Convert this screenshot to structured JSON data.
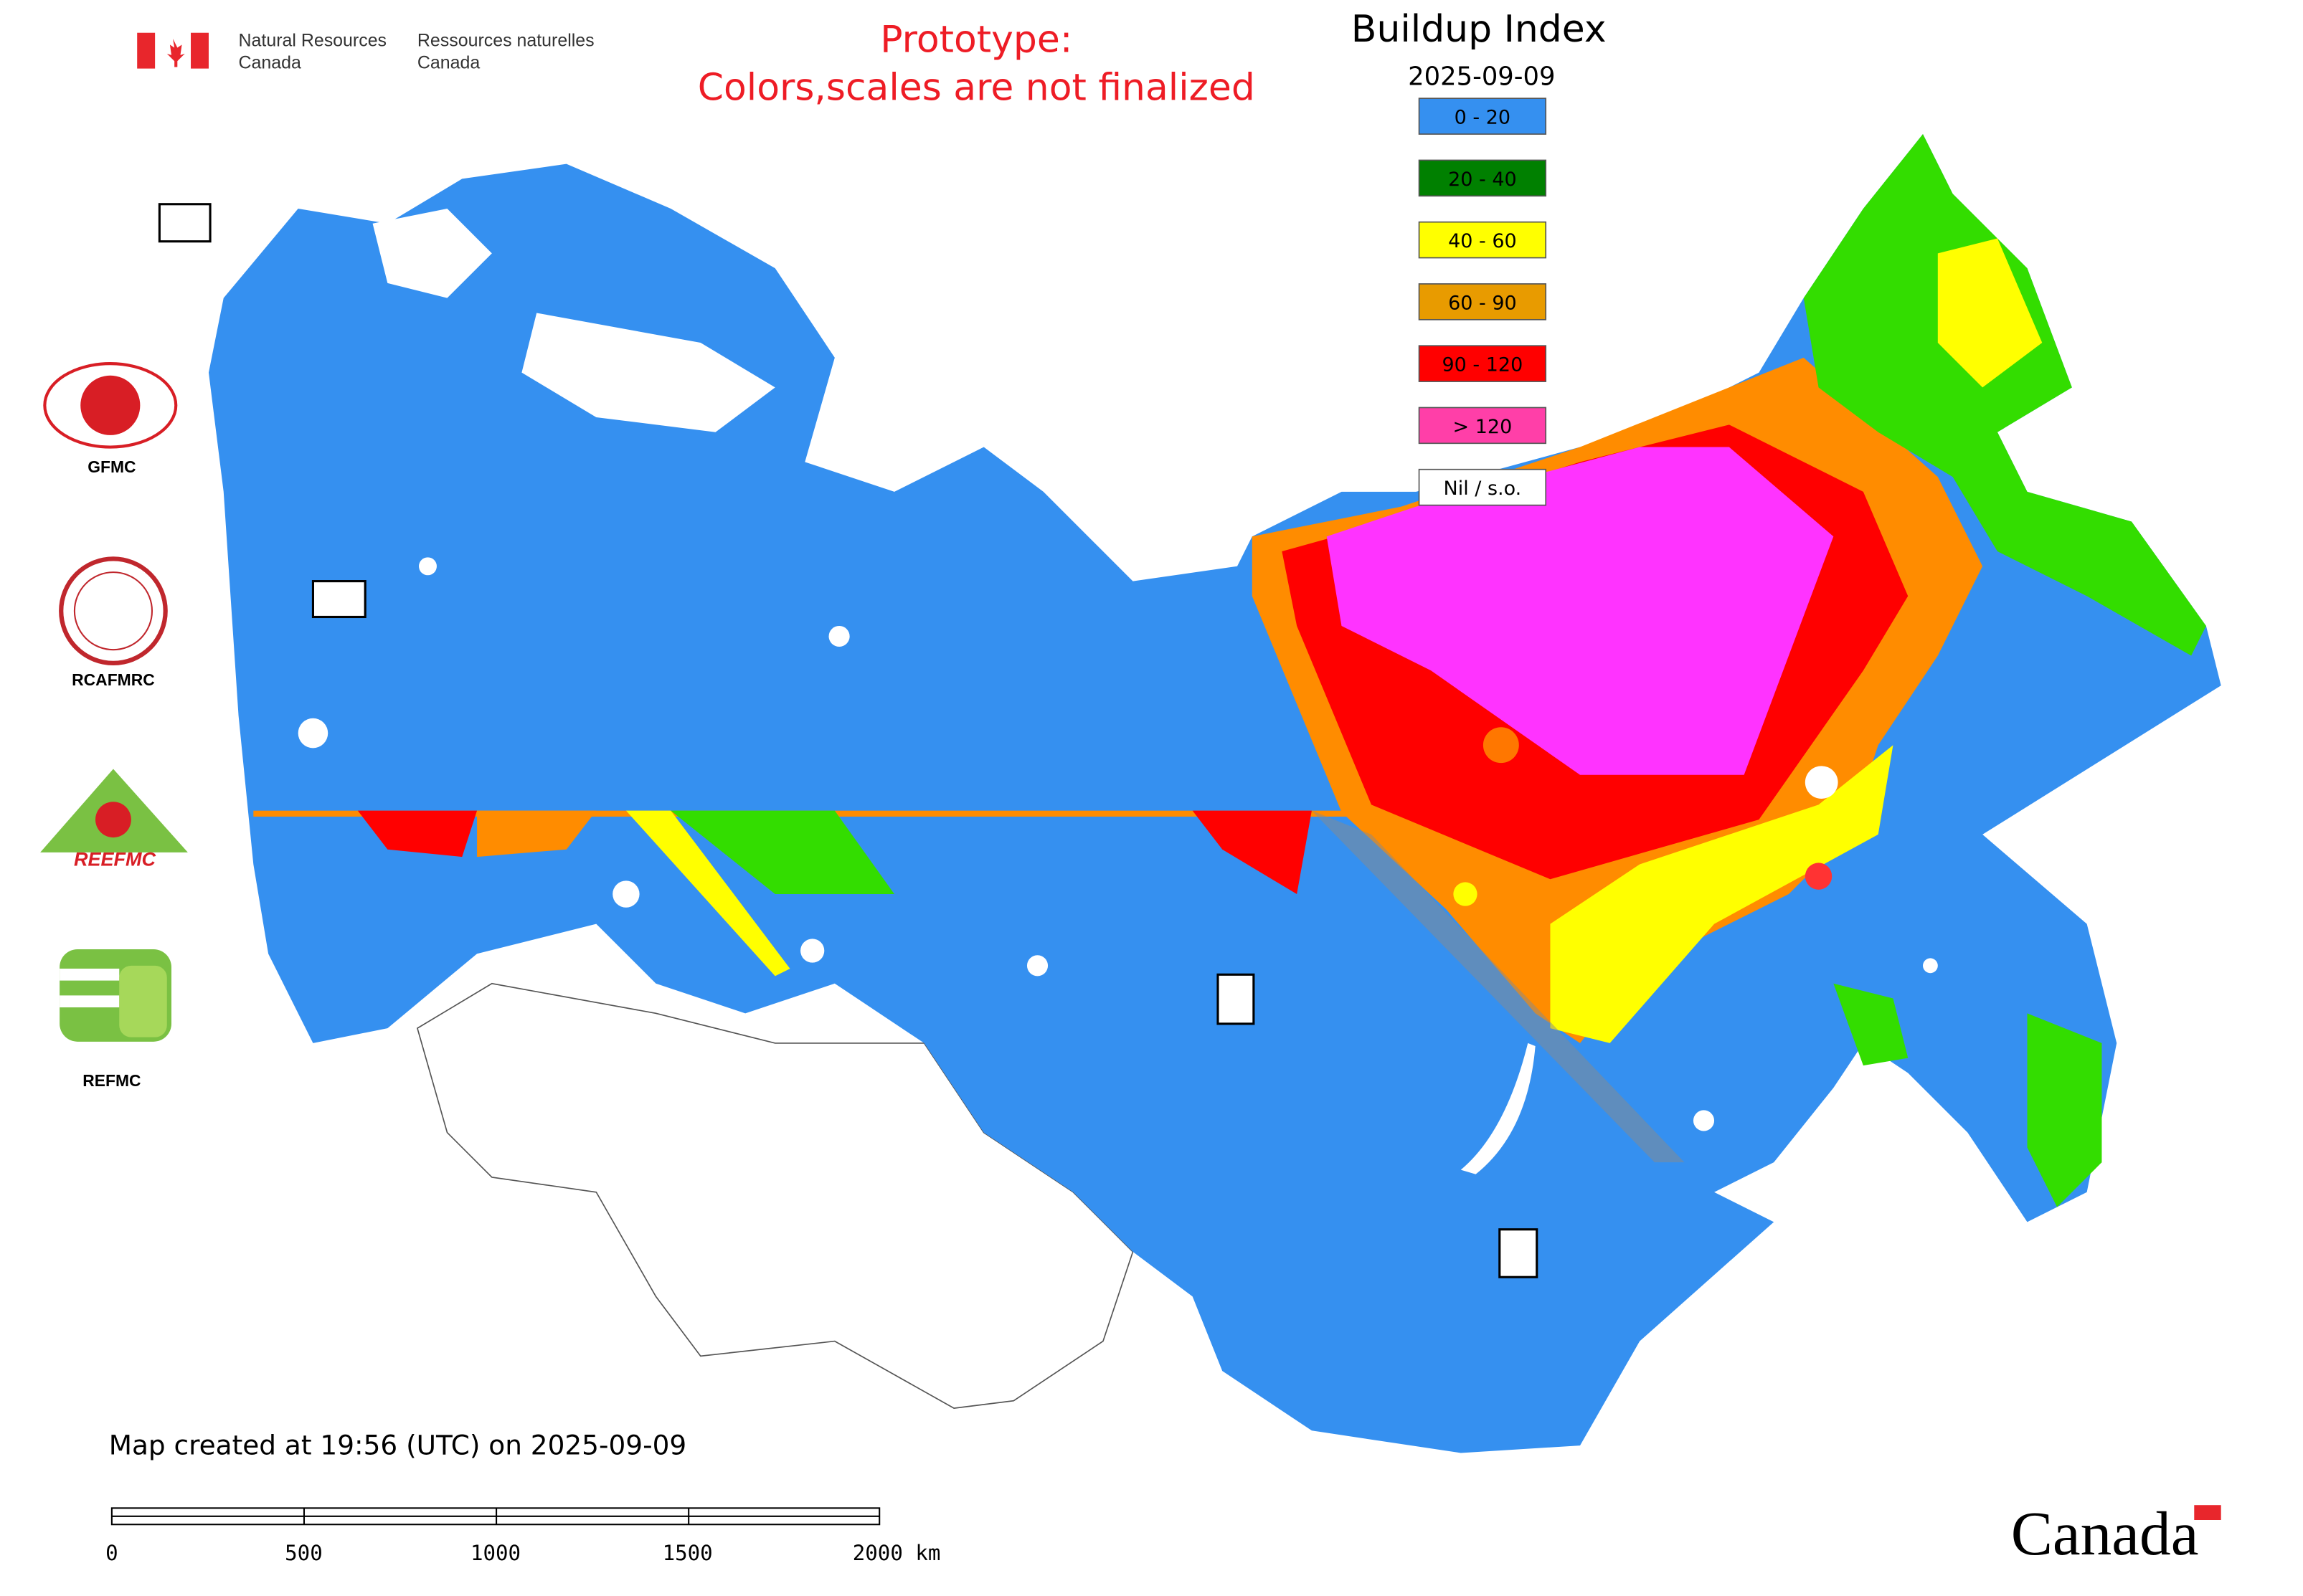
{
  "header": {
    "dept_en_line1": "Natural Resources",
    "dept_en_line2": "Canada",
    "dept_fr_line1": "Ressources naturelles",
    "dept_fr_line2": "Canada"
  },
  "notice": {
    "line1": "Prototype:",
    "line2": "Colors,scales are not finalized"
  },
  "legend": {
    "title": "Buildup Index",
    "date": "2025-09-09",
    "items": [
      {
        "label": "0 - 20",
        "color": "#3590f0"
      },
      {
        "label": "20 - 40",
        "color": "#008000"
      },
      {
        "label": "40 - 60",
        "color": "#ffff00"
      },
      {
        "label": "60 - 90",
        "color": "#e89b00"
      },
      {
        "label": "90 - 120",
        "color": "#ff0000"
      },
      {
        "label": "> 120",
        "color": "#ff3fa8"
      },
      {
        "label": "Nil / s.o.",
        "color": "#ffffff"
      }
    ]
  },
  "logos": {
    "gfmc": "GFMC",
    "rcafmrc": "RCAFMRC",
    "reefmc_wordmark": "REEFMC",
    "refmc": "REFMC"
  },
  "footer": {
    "created": "Map created at 19:56 (UTC) on 2025-09-09",
    "scale_labels": [
      "0",
      "500",
      "1000",
      "1500",
      "2000 km"
    ],
    "wordmark": "Canada"
  }
}
